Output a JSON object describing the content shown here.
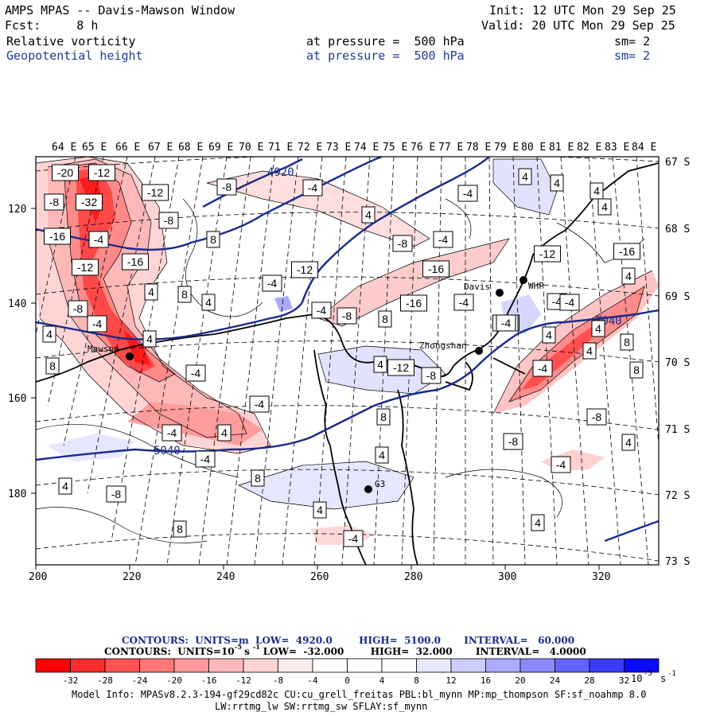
{
  "header": {
    "title": "AMPS MPAS -- Davis-Mawson Window",
    "init": "Init: 12 UTC Mon 29 Sep 25",
    "fcst": "Fcst:     8 h",
    "valid": "Valid: 20 UTC Mon 29 Sep 25",
    "field1": {
      "name": "Relative vorticity",
      "level": "at pressure =  500 hPa",
      "sm": "sm= 2"
    },
    "field2": {
      "name": "Geopotential height",
      "level": "at pressure =  500 hPa",
      "sm": "sm= 2"
    }
  },
  "map": {
    "lon_labels": [
      "64 E",
      "65 E",
      "66 E",
      "67 E",
      "68 E",
      "69 E",
      "70 E",
      "71 E",
      "72 E",
      "73 E",
      "74 E",
      "75 E",
      "76 E",
      "77 E",
      "78 E",
      "79 E",
      "80 E",
      "81 E",
      "82 E",
      "83 E",
      "84 E"
    ],
    "lat_labels": [
      "67 S",
      "68 S",
      "69 S",
      "70 S",
      "71 S",
      "72 S",
      "73 S"
    ],
    "x_ticks": [
      "200",
      "220",
      "240",
      "260",
      "280",
      "300",
      "320"
    ],
    "y_ticks": [
      "120",
      "140",
      "160",
      "180"
    ],
    "stations": [
      {
        "name": "Mawson"
      },
      {
        "name": "Davis"
      },
      {
        "name": "WHP"
      },
      {
        "name": "Zhongshan"
      },
      {
        "name": "G3"
      }
    ],
    "height_labels": [
      "4920",
      "5040",
      "5040"
    ],
    "vort_labels": [
      "-20",
      "-12",
      "-8",
      "-32",
      "-12",
      "-8",
      "-16",
      "8",
      "-16",
      "-4",
      "-12",
      "8",
      "4",
      "-8",
      "4",
      "-8",
      "-4",
      "4",
      "-4",
      "4",
      "-8",
      "-4",
      "-12",
      "-16",
      "-4",
      "-8",
      "-16",
      "-4",
      "-12",
      "-16",
      "4",
      "-4",
      "4",
      "4",
      "8",
      "4",
      "8",
      "-4",
      "-8",
      "4",
      "-8",
      "-4",
      "8",
      "-4",
      "-4",
      "4",
      "-12",
      "-8",
      "-16",
      "-4",
      "8",
      "4",
      "8",
      "-4",
      "4",
      "-4",
      "4",
      "8",
      "-4",
      "4",
      "4",
      "-8",
      "8",
      "4",
      "-4",
      "4",
      "8",
      "-4",
      "-4",
      "4",
      "4",
      "4"
    ],
    "colors": {
      "coast": "#000000",
      "height_contour": "#1a2a8c",
      "grid": "#000000"
    }
  },
  "legend": {
    "line1": "CONTOURS:  UNITS=m  LOW=  4920.0        HIGH=  5100.0       INTERVAL=   60.000",
    "line2": "CONTOURS:  UNITS=10   s    LOW=  -32.000        HIGH=  32.000       INTERVAL=   4.0000",
    "line2_exp1": "-5",
    "line2_exp2": "-1",
    "colorbar_labels": [
      "-32",
      "-28",
      "-24",
      "-20",
      "-16",
      "-12",
      "-8",
      "-4",
      "0",
      "4",
      "8",
      "12",
      "16",
      "20",
      "24",
      "28",
      "32"
    ],
    "units": "10",
    "units_exp": "-5",
    "units_s": "s",
    "units_s_exp": "-1",
    "colorbar_colors": [
      "#ff0000",
      "#ff2a2a",
      "#ff5252",
      "#ff7676",
      "#ff9898",
      "#ffb8b8",
      "#ffd4d4",
      "#ffecec",
      "#ffffff",
      "#ffffff",
      "#e8e8ff",
      "#ccccff",
      "#aaaaff",
      "#8888ff",
      "#6262ff",
      "#3b3bff",
      "#0a0aff"
    ]
  },
  "footer": {
    "model_info": "Model Info: MPASv8.2.3-194-gf29cd82c CU:cu_grell_freitas PBL:bl_mynn MP:mp_thompson SF:sf_noahmp 8.0",
    "model_info2": "LW:rrtmg_lw SW:rrtmg_sw SFLAY:sf_mynn"
  }
}
